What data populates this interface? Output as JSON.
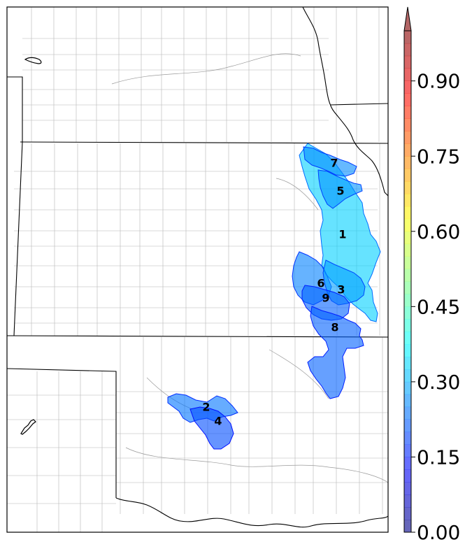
{
  "colorbar": {
    "ticks": [
      "0.00",
      "0.15",
      "0.30",
      "0.45",
      "0.60",
      "0.75",
      "0.90"
    ],
    "range": [
      0.0,
      1.0
    ],
    "extend": "max",
    "colormap": "jet",
    "alpha": 0.6
  },
  "regions": [
    {
      "label": "1",
      "value": 0.33
    },
    {
      "label": "2",
      "value": 0.24
    },
    {
      "label": "3",
      "value": 0.28
    },
    {
      "label": "4",
      "value": 0.2
    },
    {
      "label": "5",
      "value": 0.27
    },
    {
      "label": "6",
      "value": 0.25
    },
    {
      "label": "7",
      "value": 0.26
    },
    {
      "label": "8",
      "value": 0.22
    },
    {
      "label": "9",
      "value": 0.22
    }
  ],
  "colors": {
    "state_border": "#000000",
    "county_border": "#b0b0b0",
    "background": "#ffffff"
  }
}
